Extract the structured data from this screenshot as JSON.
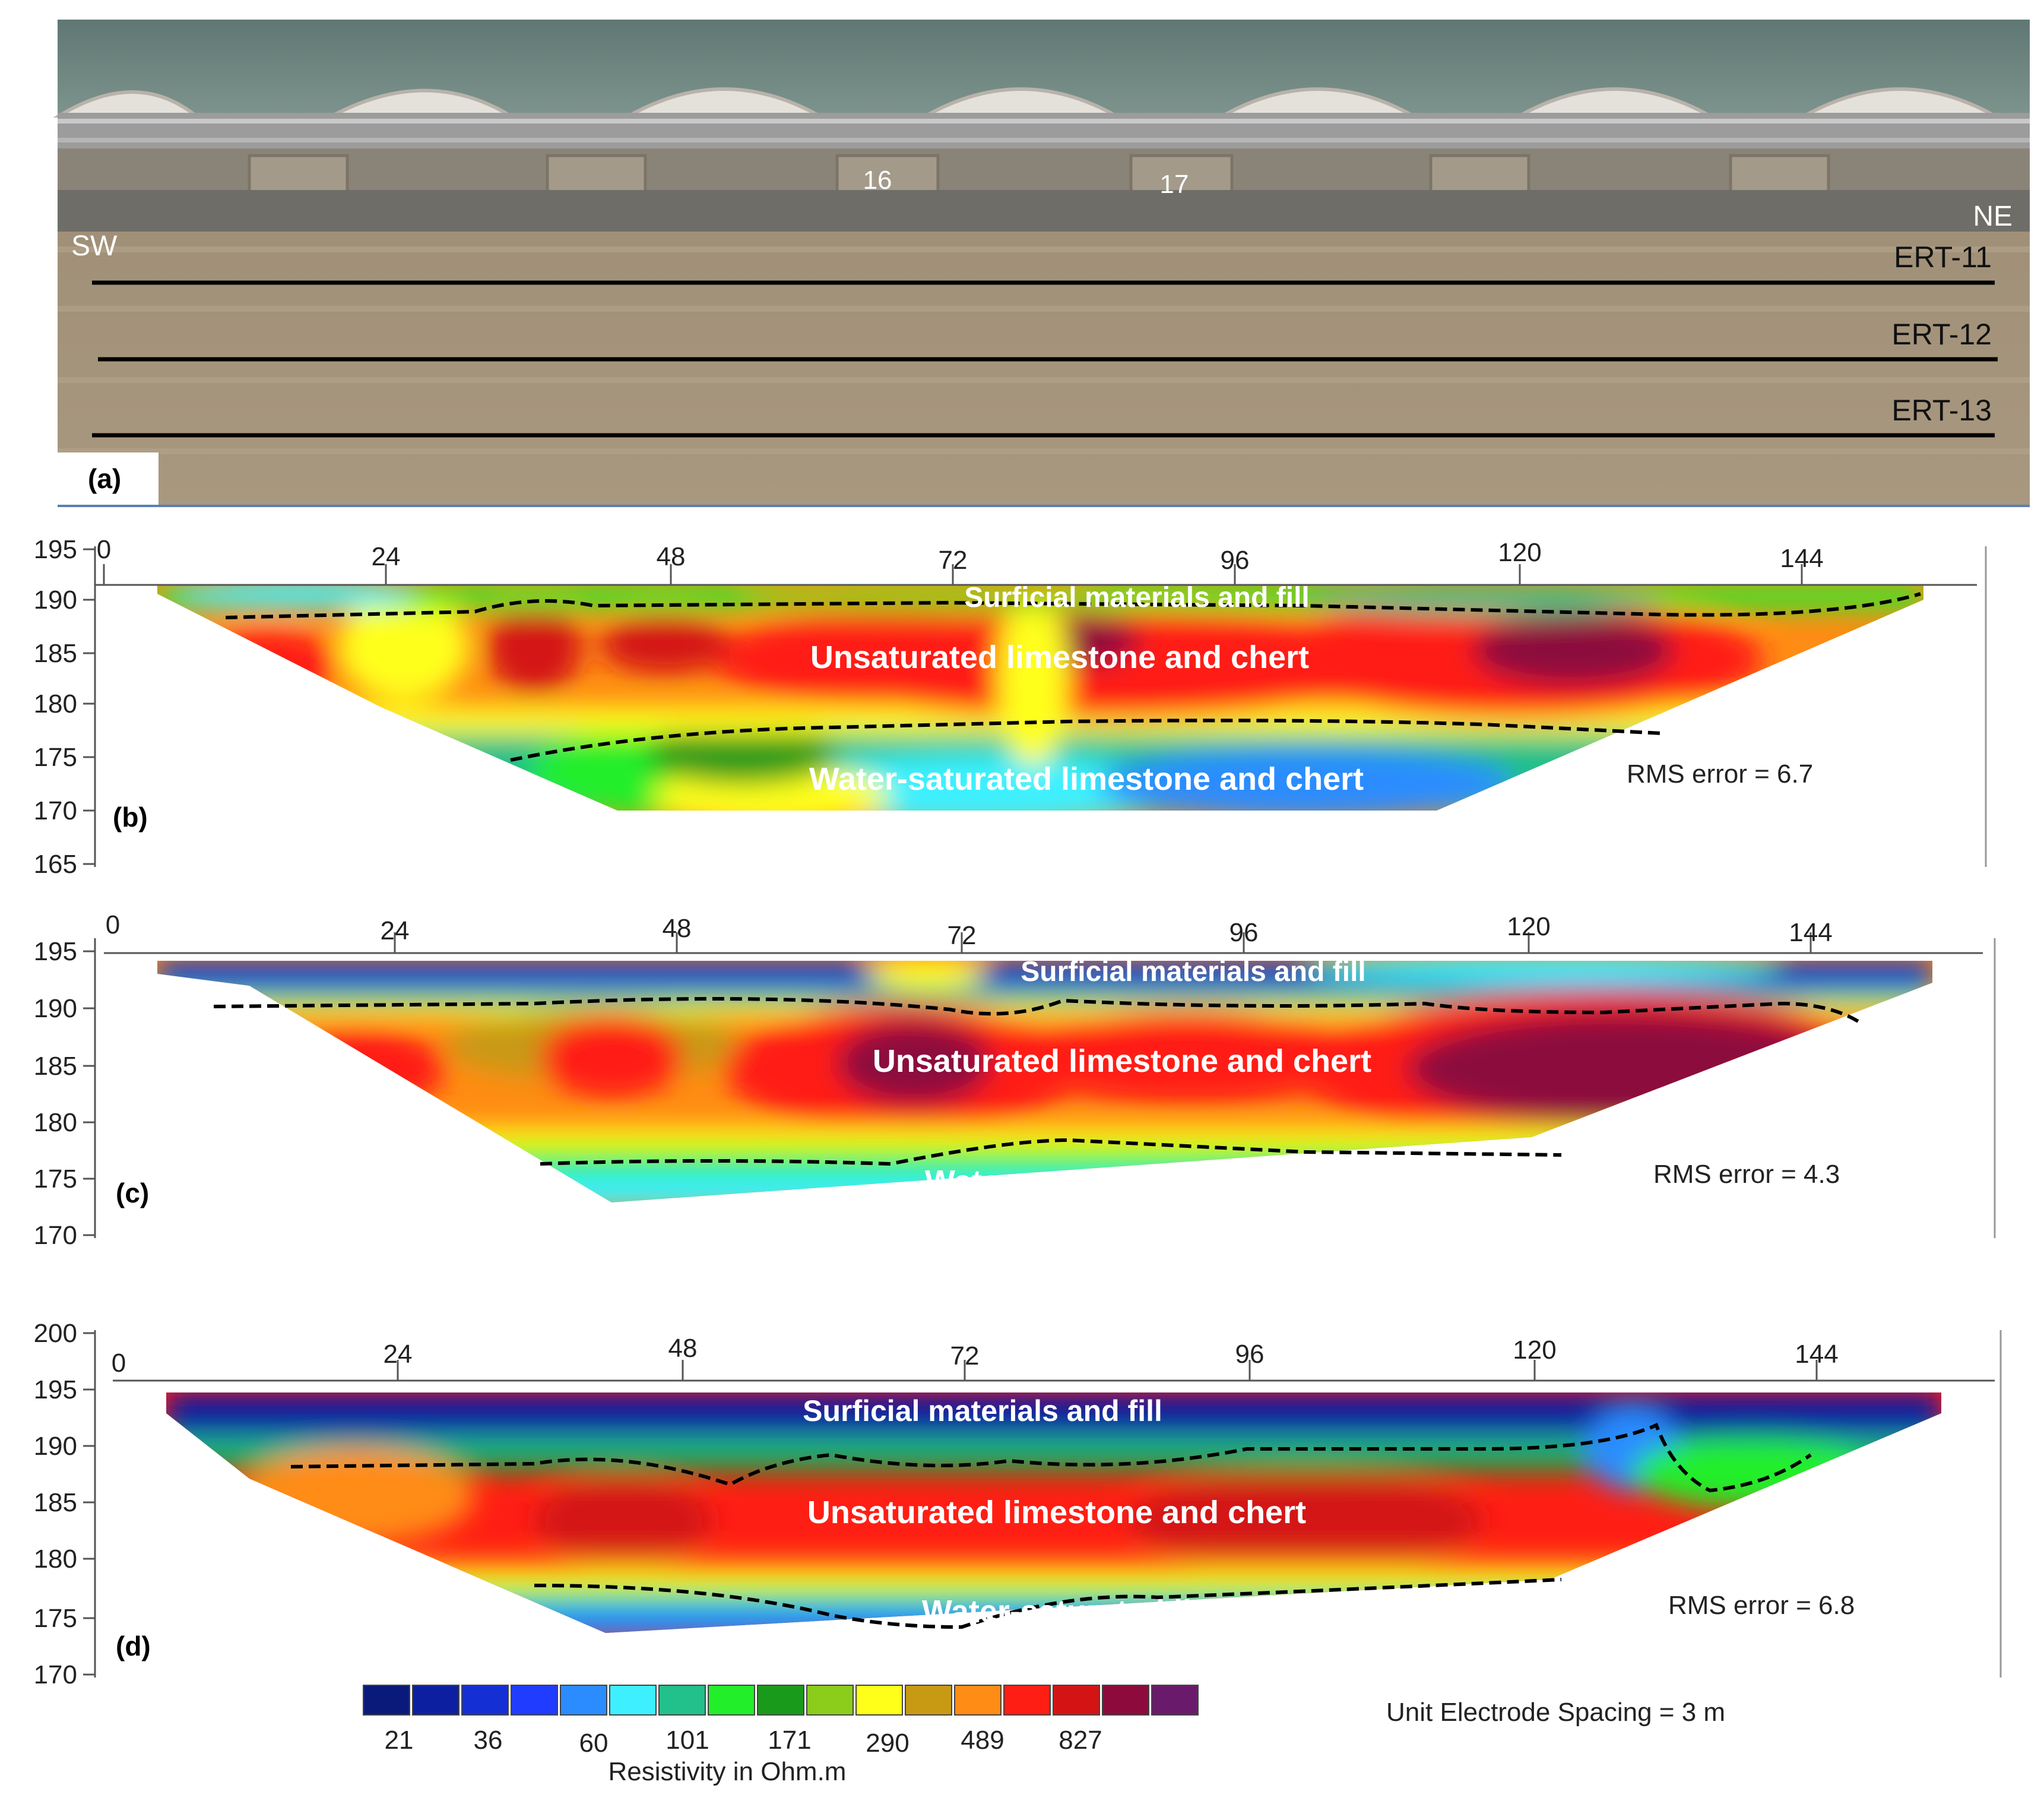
{
  "panel_a": {
    "label": "(a)",
    "pier_labels": [
      "16",
      "17"
    ],
    "dir_left": "SW",
    "dir_right": "NE",
    "lines": [
      "ERT-11",
      "ERT-12",
      "ERT-13"
    ]
  },
  "panels": [
    {
      "label": "(b)",
      "x_ticks": [
        "0",
        "24",
        "48",
        "72",
        "96",
        "120",
        "144"
      ],
      "y_ticks": [
        "195",
        "190",
        "185",
        "180",
        "175",
        "170",
        "165"
      ],
      "layer_top": "Surficial materials and fill",
      "layer_mid": "Unsaturated limestone and chert",
      "layer_bot": "Water-saturated limestone and chert",
      "rms": "RMS error = 6.7"
    },
    {
      "label": "(c)",
      "x_ticks": [
        "0",
        "24",
        "48",
        "72",
        "96",
        "120",
        "144"
      ],
      "y_ticks": [
        "195",
        "190",
        "185",
        "180",
        "175",
        "170"
      ],
      "layer_top": "Surficial materials and fill",
      "layer_mid": "Unsaturated limestone and chert",
      "layer_bot": "Water-saturated limestone and chert",
      "rms": "RMS error = 4.3"
    },
    {
      "label": "(d)",
      "x_ticks": [
        "0",
        "24",
        "48",
        "72",
        "96",
        "120",
        "144"
      ],
      "y_ticks": [
        "200",
        "195",
        "190",
        "185",
        "180",
        "175",
        "170"
      ],
      "layer_top": "Surficial materials and fill",
      "layer_mid": "Unsaturated limestone and chert",
      "layer_bot": "Water-saturated limestone and chert",
      "rms": "RMS error = 6.8"
    }
  ],
  "legend": {
    "colors": [
      "#0a1a7a",
      "#0c1fa0",
      "#1430d4",
      "#1f3cff",
      "#2b8cff",
      "#3ef0ff",
      "#22c08a",
      "#22ee2a",
      "#1a9a1a",
      "#8ccc1a",
      "#ffff1a",
      "#c89a14",
      "#ff8c14",
      "#ff1e14",
      "#d41414",
      "#8c0a3c",
      "#6a1a6a"
    ],
    "values": [
      "21",
      "36",
      "60",
      "101",
      "171",
      "290",
      "489",
      "827"
    ],
    "title": "Resistivity in Ohm.m",
    "spacing": "Unit Electrode Spacing = 3 m"
  }
}
